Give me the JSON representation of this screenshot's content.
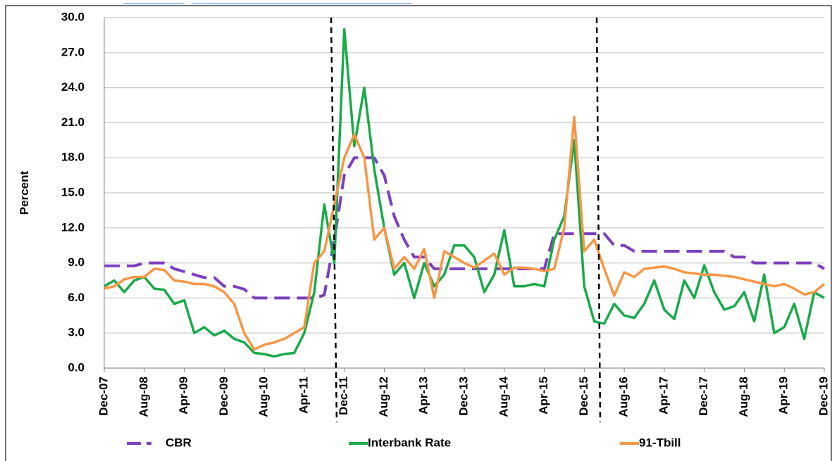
{
  "chart_data": {
    "type": "line",
    "y_label": "Percent",
    "categories": [
      "Dec-07",
      null,
      null,
      null,
      "Aug-08",
      null,
      null,
      null,
      "Apr-09",
      null,
      null,
      null,
      "Dec-09",
      null,
      null,
      null,
      "Aug-10",
      null,
      null,
      null,
      "Apr-11",
      null,
      null,
      null,
      "Dec-11",
      null,
      null,
      null,
      "Aug-12",
      null,
      null,
      null,
      "Apr-13",
      null,
      null,
      null,
      "Dec-13",
      null,
      null,
      null,
      "Aug-14",
      null,
      null,
      null,
      "Apr-15",
      null,
      null,
      null,
      "Dec-15",
      null,
      null,
      null,
      "Aug-16",
      null,
      null,
      null,
      "Apr-17",
      null,
      null,
      null,
      "Dec-17",
      null,
      null,
      null,
      "Aug-18",
      null,
      null,
      null,
      "Apr-19",
      null,
      null,
      null,
      "Dec-19"
    ],
    "series": [
      {
        "name": "CBR",
        "color": "#7b3fbf",
        "line_style": "dashed",
        "values": [
          8.75,
          8.75,
          8.75,
          8.75,
          9.0,
          9.0,
          9.0,
          8.5,
          8.25,
          8.0,
          7.75,
          7.75,
          7.0,
          7.0,
          6.75,
          6.0,
          6.0,
          6.0,
          6.0,
          6.0,
          6.0,
          6.0,
          6.25,
          11.0,
          16.5,
          18.0,
          18.0,
          18.0,
          16.5,
          13.0,
          11.0,
          9.5,
          9.5,
          8.5,
          8.5,
          8.5,
          8.5,
          8.5,
          8.5,
          8.5,
          8.5,
          8.5,
          8.5,
          8.5,
          8.5,
          11.5,
          11.5,
          11.5,
          11.5,
          11.5,
          11.5,
          10.5,
          10.5,
          10.0,
          10.0,
          10.0,
          10.0,
          10.0,
          10.0,
          10.0,
          10.0,
          10.0,
          10.0,
          9.5,
          9.5,
          9.0,
          9.0,
          9.0,
          9.0,
          9.0,
          9.0,
          9.0,
          8.5
        ]
      },
      {
        "name": "Interbank Rate",
        "color": "#1aaa4a",
        "line_style": "solid",
        "values": [
          7.0,
          7.5,
          6.5,
          7.5,
          7.8,
          6.8,
          6.7,
          5.5,
          5.8,
          3.0,
          3.5,
          2.8,
          3.2,
          2.5,
          2.2,
          1.3,
          1.2,
          1.0,
          1.2,
          1.3,
          3.0,
          6.5,
          14.0,
          9.0,
          29.0,
          19.0,
          24.0,
          17.0,
          12.0,
          8.0,
          9.0,
          6.0,
          9.0,
          7.0,
          8.0,
          10.5,
          10.5,
          9.5,
          6.5,
          8.0,
          11.8,
          7.0,
          7.0,
          7.2,
          7.0,
          11.0,
          13.0,
          19.5,
          7.0,
          4.0,
          3.8,
          5.5,
          4.5,
          4.3,
          5.5,
          7.5,
          5.0,
          4.2,
          7.5,
          6.0,
          8.8,
          6.5,
          5.0,
          5.3,
          6.5,
          4.0,
          8.0,
          3.0,
          3.5,
          5.5,
          2.5,
          6.5,
          6.0
        ]
      },
      {
        "name": "91-Tbill",
        "color": "#f79646",
        "line_style": "solid",
        "values": [
          6.8,
          7.0,
          7.6,
          7.8,
          7.8,
          8.5,
          8.4,
          7.5,
          7.4,
          7.2,
          7.2,
          7.0,
          6.5,
          5.5,
          3.0,
          1.6,
          2.0,
          2.2,
          2.5,
          3.0,
          3.5,
          9.0,
          10.0,
          14.0,
          18.0,
          20.0,
          18.0,
          11.0,
          12.0,
          8.5,
          9.5,
          8.5,
          10.2,
          6.0,
          10.0,
          9.5,
          9.0,
          8.6,
          9.2,
          9.8,
          8.0,
          8.6,
          8.6,
          8.5,
          8.3,
          8.5,
          12.0,
          21.5,
          10.0,
          11.0,
          8.5,
          6.2,
          8.2,
          7.8,
          8.5,
          8.6,
          8.7,
          8.5,
          8.2,
          8.1,
          8.0,
          8.0,
          7.9,
          7.8,
          7.6,
          7.4,
          7.2,
          7.0,
          7.2,
          6.8,
          6.3,
          6.5,
          7.2
        ]
      }
    ],
    "ylim": [
      0,
      30
    ],
    "yticks": [
      {
        "value": 0,
        "label": "0.0"
      },
      {
        "value": 3,
        "label": "3.0"
      },
      {
        "value": 6,
        "label": "6.0"
      },
      {
        "value": 9,
        "label": "9.0"
      },
      {
        "value": 12,
        "label": "12.0"
      },
      {
        "value": 15,
        "label": "15.0"
      },
      {
        "value": 18,
        "label": "18.0"
      },
      {
        "value": 21,
        "label": "21.0"
      },
      {
        "value": 24,
        "label": "24.0"
      },
      {
        "value": 27,
        "label": "27.0"
      },
      {
        "value": 30,
        "label": "30.0"
      }
    ],
    "grid": true,
    "legend": "bottom"
  }
}
